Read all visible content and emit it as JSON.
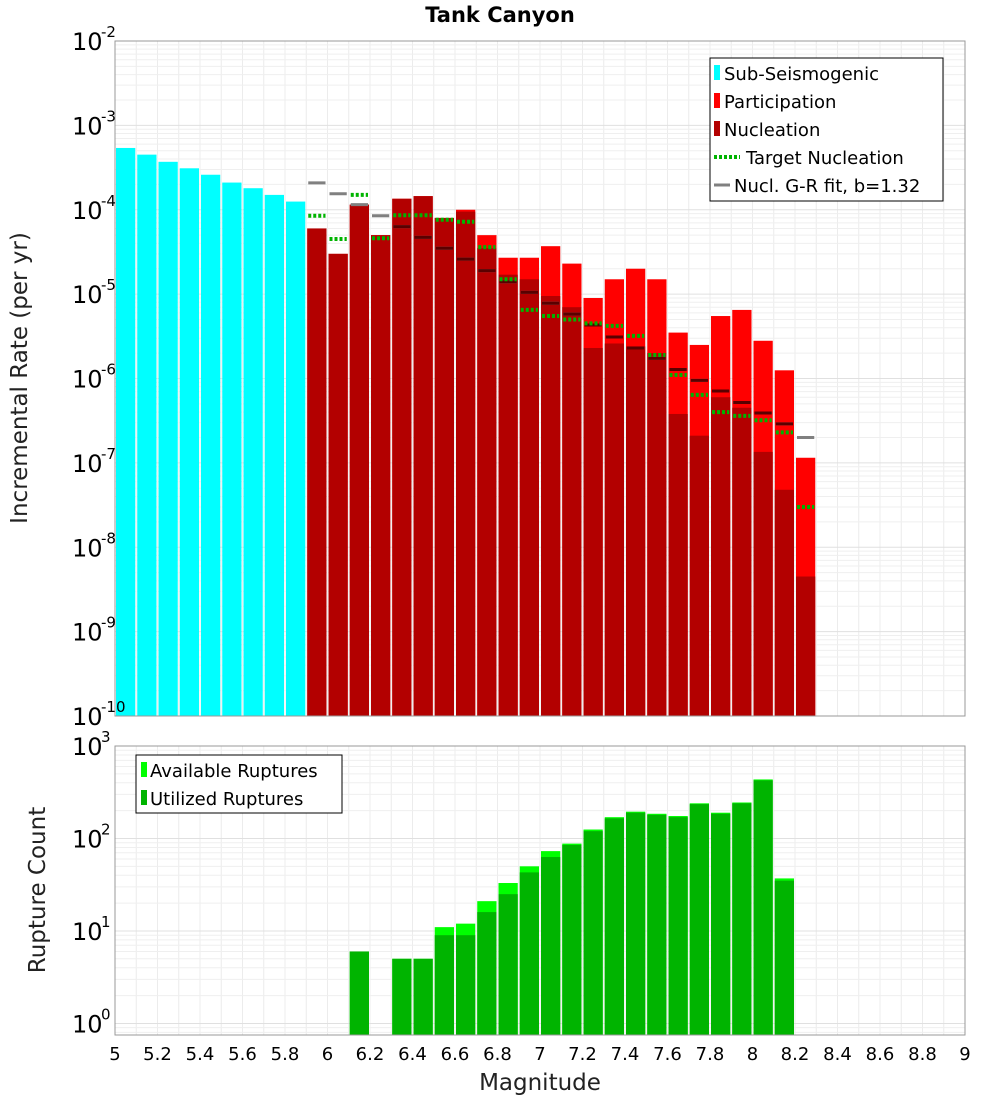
{
  "chart_data": [
    {
      "type": "bar",
      "title": "Tank Canyon",
      "xlabel": "Magnitude",
      "ylabel": "Incremental Rate (per yr)",
      "yscale": "log",
      "ylim": [
        1e-10,
        0.01
      ],
      "xlim": [
        5.0,
        9.0
      ],
      "bin_width": 0.1,
      "legend_position": "top-right",
      "legend": [
        {
          "name": "Sub-Seismogenic",
          "color": "#00ffff",
          "style": "bar"
        },
        {
          "name": "Participation",
          "color": "#ff0000",
          "style": "bar"
        },
        {
          "name": "Nucleation",
          "color": "#b30000",
          "style": "bar"
        },
        {
          "name": "Target Nucleation",
          "color": "#00b400",
          "style": "dotted"
        },
        {
          "name": "Nucl. G-R fit, b=1.32",
          "color": "#808080",
          "style": "line"
        }
      ],
      "sub_seismogenic": {
        "x": [
          5.05,
          5.15,
          5.25,
          5.35,
          5.45,
          5.55,
          5.65,
          5.75,
          5.85
        ],
        "values": [
          0.00054,
          0.00045,
          0.00037,
          0.00031,
          0.00026,
          0.00021,
          0.00018,
          0.00015,
          0.000125
        ]
      },
      "participation": {
        "x": [
          5.95,
          6.05,
          6.15,
          6.25,
          6.35,
          6.45,
          6.55,
          6.65,
          6.75,
          6.85,
          6.95,
          7.05,
          7.15,
          7.25,
          7.35,
          7.45,
          7.55,
          7.65,
          7.75,
          7.85,
          7.95,
          8.05,
          8.15,
          8.25
        ],
        "values": [
          6e-05,
          3e-05,
          0.000115,
          5e-05,
          0.000135,
          0.000145,
          8e-05,
          0.0001,
          5e-05,
          2.7e-05,
          2.7e-05,
          3.7e-05,
          2.3e-05,
          9e-06,
          1.5e-05,
          2e-05,
          1.5e-05,
          3.5e-06,
          2.5e-06,
          5.5e-06,
          6.5e-06,
          2.8e-06,
          1.25e-06,
          1.15e-07
        ]
      },
      "nucleation": {
        "x": [
          5.95,
          6.05,
          6.15,
          6.25,
          6.35,
          6.45,
          6.55,
          6.65,
          6.75,
          6.85,
          6.95,
          7.05,
          7.15,
          7.25,
          7.35,
          7.45,
          7.55,
          7.65,
          7.75,
          7.85,
          7.95,
          8.05,
          8.15,
          8.25
        ],
        "values": [
          6e-05,
          3e-05,
          0.000115,
          5e-05,
          0.000135,
          0.000145,
          8e-05,
          9.5e-05,
          3.5e-05,
          1.7e-05,
          1.5e-05,
          9.5e-06,
          7e-06,
          2.3e-06,
          2.6e-06,
          2.4e-06,
          2e-06,
          3.8e-07,
          2.1e-07,
          6e-07,
          4.5e-07,
          1.35e-07,
          4.8e-08,
          4.5e-09
        ]
      },
      "target_nucleation": {
        "x": [
          5.95,
          6.05,
          6.15,
          6.25,
          6.35,
          6.45,
          6.55,
          6.65,
          6.75,
          6.85,
          6.95,
          7.05,
          7.15,
          7.25,
          7.35,
          7.45,
          7.55,
          7.65,
          7.75,
          7.85,
          7.95,
          8.05,
          8.15,
          8.25
        ],
        "values": [
          8.5e-05,
          4.5e-05,
          0.00015,
          4.6e-05,
          8.6e-05,
          8.6e-05,
          7.6e-05,
          7.2e-05,
          3.6e-05,
          1.5e-05,
          6.5e-06,
          5.5e-06,
          5e-06,
          4.5e-06,
          4.2e-06,
          3.2e-06,
          1.9e-06,
          1.1e-06,
          6.4e-07,
          4e-07,
          3.6e-07,
          3.2e-07,
          2.3e-07,
          3e-08
        ]
      },
      "gr_fit": {
        "x": [
          5.95,
          6.05,
          6.15,
          6.25,
          6.35,
          6.45,
          6.55,
          6.65,
          6.75,
          6.85,
          6.95,
          7.05,
          7.15,
          7.25,
          7.35,
          7.45,
          7.55,
          7.65,
          7.75,
          7.85,
          7.95,
          8.05,
          8.15,
          8.25
        ],
        "values": [
          0.000208,
          0.000155,
          0.000115,
          8.5e-05,
          6.3e-05,
          4.7e-05,
          3.5e-05,
          2.6e-05,
          1.9e-05,
          1.4e-05,
          1.05e-05,
          7.8e-06,
          5.8e-06,
          4.3e-06,
          3.1e-06,
          2.3e-06,
          1.73e-06,
          1.28e-06,
          9.5e-07,
          7.1e-07,
          5.2e-07,
          3.9e-07,
          2.9e-07,
          2e-07
        ]
      },
      "y_ticks": [
        {
          "base": "10",
          "exp": "-10"
        },
        {
          "base": "10",
          "exp": "-9"
        },
        {
          "base": "10",
          "exp": "-8"
        },
        {
          "base": "10",
          "exp": "-7"
        },
        {
          "base": "10",
          "exp": "-6"
        },
        {
          "base": "10",
          "exp": "-5"
        },
        {
          "base": "10",
          "exp": "-4"
        },
        {
          "base": "10",
          "exp": "-3"
        },
        {
          "base": "10",
          "exp": "-2"
        }
      ]
    },
    {
      "type": "bar",
      "title": "",
      "xlabel": "Magnitude",
      "ylabel": "Rupture Count",
      "yscale": "log",
      "ylim": [
        0.75,
        1000
      ],
      "xlim": [
        5.0,
        9.0
      ],
      "bin_width": 0.1,
      "legend_position": "top-left",
      "legend": [
        {
          "name": "Available Ruptures",
          "color": "#00ff00"
        },
        {
          "name": "Utilized Ruptures",
          "color": "#00b400"
        }
      ],
      "available": {
        "x": [
          6.15,
          6.35,
          6.45,
          6.55,
          6.65,
          6.75,
          6.85,
          6.95,
          7.05,
          7.15,
          7.25,
          7.35,
          7.45,
          7.55,
          7.65,
          7.75,
          7.85,
          7.95,
          8.05,
          8.15
        ],
        "values": [
          6,
          5,
          5,
          11,
          12,
          21,
          33,
          50,
          73,
          88,
          125,
          170,
          195,
          185,
          175,
          240,
          190,
          245,
          435,
          37
        ]
      },
      "utilized": {
        "x": [
          6.15,
          6.35,
          6.45,
          6.55,
          6.65,
          6.75,
          6.85,
          6.95,
          7.05,
          7.15,
          7.25,
          7.35,
          7.45,
          7.55,
          7.65,
          7.75,
          7.85,
          7.95,
          8.05,
          8.15
        ],
        "values": [
          6,
          5,
          5,
          9,
          9,
          16,
          25,
          43,
          63,
          85,
          120,
          165,
          190,
          180,
          170,
          235,
          185,
          240,
          425,
          35
        ]
      },
      "y_ticks": [
        {
          "base": "10",
          "exp": "0"
        },
        {
          "base": "10",
          "exp": "1"
        },
        {
          "base": "10",
          "exp": "2"
        },
        {
          "base": "10",
          "exp": "3"
        }
      ]
    }
  ],
  "x_ticks": [
    "5",
    "5.2",
    "5.4",
    "5.6",
    "5.8",
    "6",
    "6.2",
    "6.4",
    "6.6",
    "6.8",
    "7",
    "7.2",
    "7.4",
    "7.6",
    "7.8",
    "8",
    "8.2",
    "8.4",
    "8.6",
    "8.8",
    "9"
  ]
}
